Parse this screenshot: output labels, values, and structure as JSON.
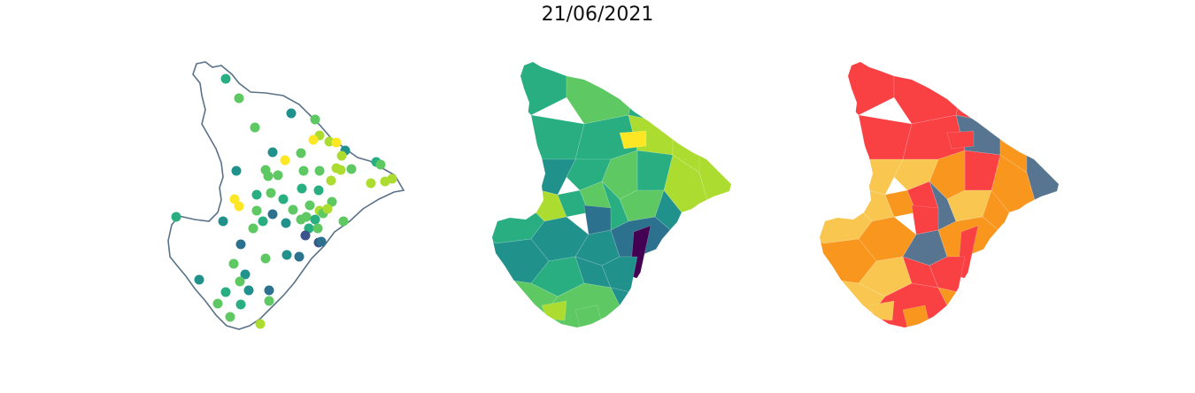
{
  "figure": {
    "title": "21/06/2021"
  },
  "colors": {
    "outline": "#5a7288",
    "viridis": [
      "#440154",
      "#3b528b",
      "#2c728e",
      "#21918c",
      "#28ae80",
      "#5ec962",
      "#addc30",
      "#fde725"
    ],
    "risk": [
      "#f94144",
      "#f8961e",
      "#f9c74f",
      "#577590"
    ]
  },
  "panels": [
    {
      "id": "stations",
      "kind": "point-map",
      "colormap": "viridis"
    },
    {
      "id": "municipal-interpolation",
      "kind": "choropleth",
      "colormap": "viridis"
    },
    {
      "id": "municipal-classes",
      "kind": "choropleth",
      "colormap": "risk"
    }
  ]
}
